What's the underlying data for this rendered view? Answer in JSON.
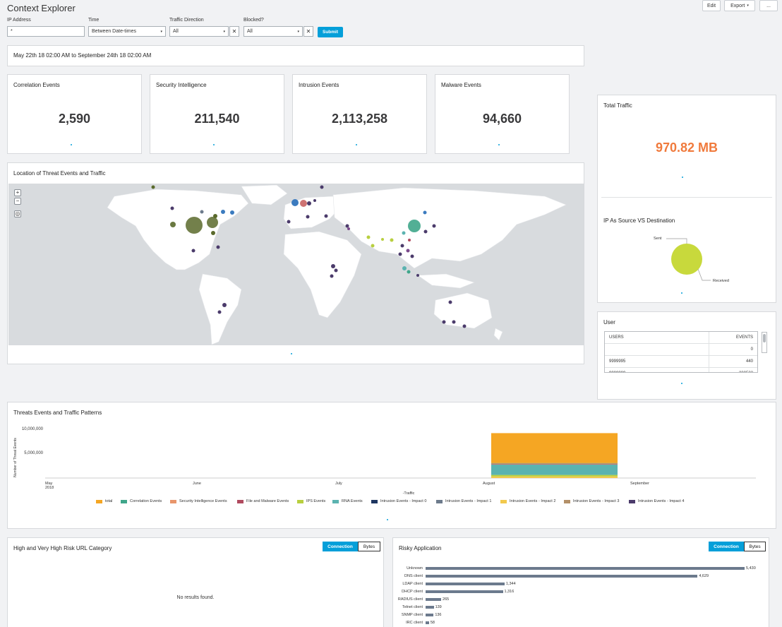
{
  "page": {
    "title": "Context Explorer"
  },
  "toolbar": {
    "edit": "Edit",
    "export": "Export",
    "more": "..."
  },
  "filters": {
    "ip_label": "IP Address",
    "ip_value": "*",
    "time_label": "Time",
    "time_value": "Between Date-times",
    "direction_label": "Traffic Direction",
    "direction_value": "All",
    "blocked_label": "Blocked?",
    "blocked_value": "All",
    "submit": "Submit",
    "clear": "✕",
    "caret": "▾"
  },
  "daterange": "May 22th 18 02:00 AM to September 24th 18 02:00 AM",
  "stats": [
    {
      "label": "Correlation Events",
      "value": "2,590"
    },
    {
      "label": "Security Intelligence",
      "value": "211,540"
    },
    {
      "label": "Intrusion Events",
      "value": "2,113,258"
    },
    {
      "label": "Malware Events",
      "value": "94,660"
    }
  ],
  "total_traffic": {
    "label": "Total Traffic",
    "value": "970.82 MB",
    "color": "#f07a3c"
  },
  "ip_direction": {
    "label": "IP As Source VS Destination",
    "sent": "Sent",
    "received": "Received"
  },
  "map": {
    "title": "Location of Threat Events and Traffic",
    "zoom_in": "+",
    "zoom_out": "−",
    "locate": "◎"
  },
  "user": {
    "title": "User",
    "headers": [
      "USERS",
      "EVENTS"
    ],
    "rows": [
      [
        "",
        "0"
      ],
      [
        "9999995",
        "440"
      ],
      [
        "9999999",
        "230522"
      ]
    ]
  },
  "threats": {
    "title": "Threats Events and Traffic Patterns",
    "ylabel": "Number of Threat Events",
    "xlabel": "-Traffic",
    "yticks": [
      "10,000,000",
      "5,000,000"
    ],
    "xticks": [
      "May",
      "June",
      "July",
      "August",
      "September"
    ],
    "year": "2018"
  },
  "chart_data": {
    "type": "bar",
    "title": "Threats Events and Traffic Patterns",
    "xlabel": "-Traffic",
    "ylabel": "Number of Threat Events",
    "categories": [
      "August"
    ],
    "ylim": [
      0,
      10000000
    ],
    "series": [
      {
        "name": "total",
        "values": [
          5800000
        ],
        "color": "#f5a623"
      },
      {
        "name": "Correlation Events",
        "values": [
          2590
        ],
        "color": "#3fa68a"
      },
      {
        "name": "Security Intelligence Events",
        "values": [
          211540
        ],
        "color": "#e8956b"
      },
      {
        "name": "File and Malware Events",
        "values": [
          94660
        ],
        "color": "#b04a5f"
      },
      {
        "name": "IPS Events",
        "values": [
          300000
        ],
        "color": "#b8cf3f"
      },
      {
        "name": "RNA Events",
        "values": [
          2000000
        ],
        "color": "#5bb3b0"
      },
      {
        "name": "Intrusion Events - Impact 0",
        "values": [
          0
        ],
        "color": "#1d3560"
      },
      {
        "name": "Intrusion Events - Impact 1",
        "values": [
          0
        ],
        "color": "#6d7b8c"
      },
      {
        "name": "Intrusion Events - Impact 2",
        "values": [
          300000
        ],
        "color": "#f2c94c"
      },
      {
        "name": "Intrusion Events - Impact 3",
        "values": [
          0
        ],
        "color": "#b39068"
      },
      {
        "name": "Intrusion Events - Impact 4",
        "values": [
          0
        ],
        "color": "#4b3b6b"
      }
    ]
  },
  "url_category": {
    "title": "High and Very High Risk URL Category",
    "connection": "Connection",
    "bytes": "Bytes",
    "empty": "No results found."
  },
  "risky_app": {
    "title": "Risky Application",
    "connection": "Connection",
    "bytes": "Bytes",
    "items": [
      {
        "label": "Unknown",
        "value": 5430,
        "display": "5,430"
      },
      {
        "label": "DNS client",
        "value": 4629,
        "display": "4,629"
      },
      {
        "label": "LDAP client",
        "value": 1344,
        "display": "1,344"
      },
      {
        "label": "DHCP client",
        "value": 1316,
        "display": "1,316"
      },
      {
        "label": "RADIUS client",
        "value": 265,
        "display": "265"
      },
      {
        "label": "Telnet client",
        "value": 139,
        "display": "139"
      },
      {
        "label": "SNMP client",
        "value": 136,
        "display": "136"
      },
      {
        "label": "IRC client",
        "value": 58,
        "display": "58"
      }
    ]
  }
}
